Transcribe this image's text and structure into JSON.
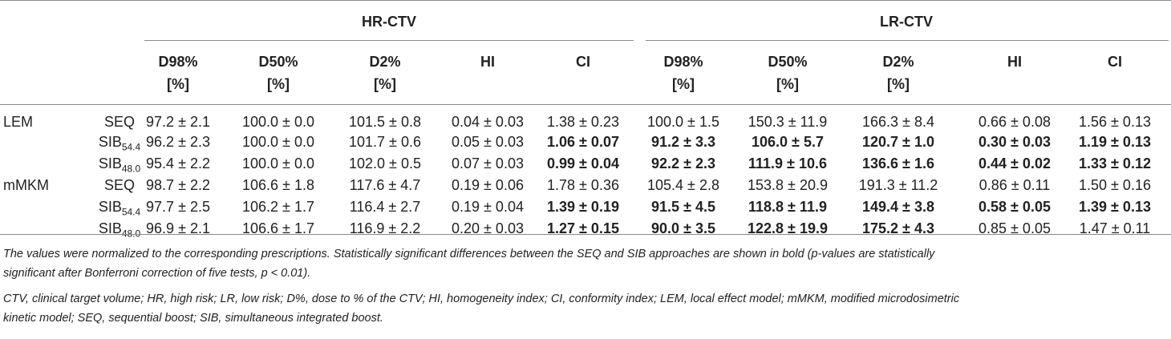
{
  "groups": {
    "hr": "HR-CTV",
    "lr": "LR-CTV"
  },
  "columns": [
    {
      "line1": "D98%",
      "line2": "[%]"
    },
    {
      "line1": "D50%",
      "line2": "[%]"
    },
    {
      "line1": "D2%",
      "line2": "[%]"
    },
    {
      "line1": "HI",
      "line2": ""
    },
    {
      "line1": "CI",
      "line2": ""
    },
    {
      "line1": "D98%",
      "line2": "[%]"
    },
    {
      "line1": "D50%",
      "line2": "[%]"
    },
    {
      "line1": "D2%",
      "line2": "[%]"
    },
    {
      "line1": "HI",
      "line2": ""
    },
    {
      "line1": "CI",
      "line2": ""
    }
  ],
  "rows": [
    {
      "model": "LEM",
      "method": "SEQ",
      "sub": "",
      "values": [
        "97.2 ± 2.1",
        "100.0 ± 0.0",
        "101.5 ± 0.8",
        "0.04 ± 0.03",
        "1.38 ± 0.23",
        "100.0 ± 1.5",
        "150.3 ± 11.9",
        "166.3 ± 8.4",
        "0.66 ± 0.08",
        "1.56 ± 0.13"
      ],
      "bold": [
        false,
        false,
        false,
        false,
        false,
        false,
        false,
        false,
        false,
        false
      ]
    },
    {
      "model": "",
      "method": "SIB",
      "sub": "54.4",
      "values": [
        "96.2 ± 2.3",
        "100.0 ± 0.0",
        "101.7 ± 0.6",
        "0.05 ± 0.03",
        "1.06 ± 0.07",
        "91.2 ± 3.3",
        "106.0 ± 5.7",
        "120.7 ± 1.0",
        "0.30 ± 0.03",
        "1.19 ± 0.13"
      ],
      "bold": [
        false,
        false,
        false,
        false,
        true,
        true,
        true,
        true,
        true,
        true
      ]
    },
    {
      "model": "",
      "method": "SIB",
      "sub": "48.0",
      "values": [
        "95.4 ± 2.2",
        "100.0 ± 0.0",
        "102.0 ± 0.5",
        "0.07 ± 0.03",
        "0.99 ± 0.04",
        "92.2 ± 2.3",
        "111.9 ± 10.6",
        "136.6 ± 1.6",
        "0.44 ± 0.02",
        "1.33 ± 0.12"
      ],
      "bold": [
        false,
        false,
        false,
        false,
        true,
        true,
        true,
        true,
        true,
        true
      ]
    },
    {
      "model": "mMKM",
      "method": "SEQ",
      "sub": "",
      "values": [
        "98.7 ± 2.2",
        "106.6 ± 1.8",
        "117.6 ± 4.7",
        "0.19 ± 0.06",
        "1.78 ± 0.36",
        "105.4 ± 2.8",
        "153.8 ± 20.9",
        "191.3 ± 11.2",
        "0.86 ± 0.11",
        "1.50 ± 0.16"
      ],
      "bold": [
        false,
        false,
        false,
        false,
        false,
        false,
        false,
        false,
        false,
        false
      ]
    },
    {
      "model": "",
      "method": "SIB",
      "sub": "54.4",
      "values": [
        "97.7 ± 2.5",
        "106.2 ± 1.7",
        "116.4 ± 2.7",
        "0.19 ± 0.04",
        "1.39 ± 0.19",
        "91.5 ± 4.5",
        "118.8 ± 11.9",
        "149.4 ± 3.8",
        "0.58 ± 0.05",
        "1.39 ± 0.13"
      ],
      "bold": [
        false,
        false,
        false,
        false,
        true,
        true,
        true,
        true,
        true,
        true
      ]
    },
    {
      "model": "",
      "method": "SIB",
      "sub": "48.0",
      "values": [
        "96.9 ± 2.1",
        "106.6 ± 1.7",
        "116.9 ± 2.2",
        "0.20 ± 0.03",
        "1.27 ± 0.15",
        "90.0 ± 3.5",
        "122.8 ± 19.9",
        "175.2 ± 4.3",
        "0.85 ± 0.05",
        "1.47 ± 0.11"
      ],
      "bold": [
        false,
        false,
        false,
        false,
        true,
        true,
        true,
        true,
        false,
        false
      ]
    }
  ],
  "notes": {
    "line1": "The values were normalized to the corresponding prescriptions. Statistically significant differences between the SEQ and SIB approaches are shown in bold (p-values are statistically",
    "line2": "significant after Bonferroni correction of five tests, p < 0.01).",
    "line3": "CTV, clinical target volume; HR, high risk; LR, low risk; D%, dose to % of the CTV; HI, homogeneity index; CI, conformity index; LEM, local effect model; mMKM, modified microdosimetric",
    "line4": "kinetic model; SEQ, sequential boost; SIB, simultaneous integrated boost."
  }
}
